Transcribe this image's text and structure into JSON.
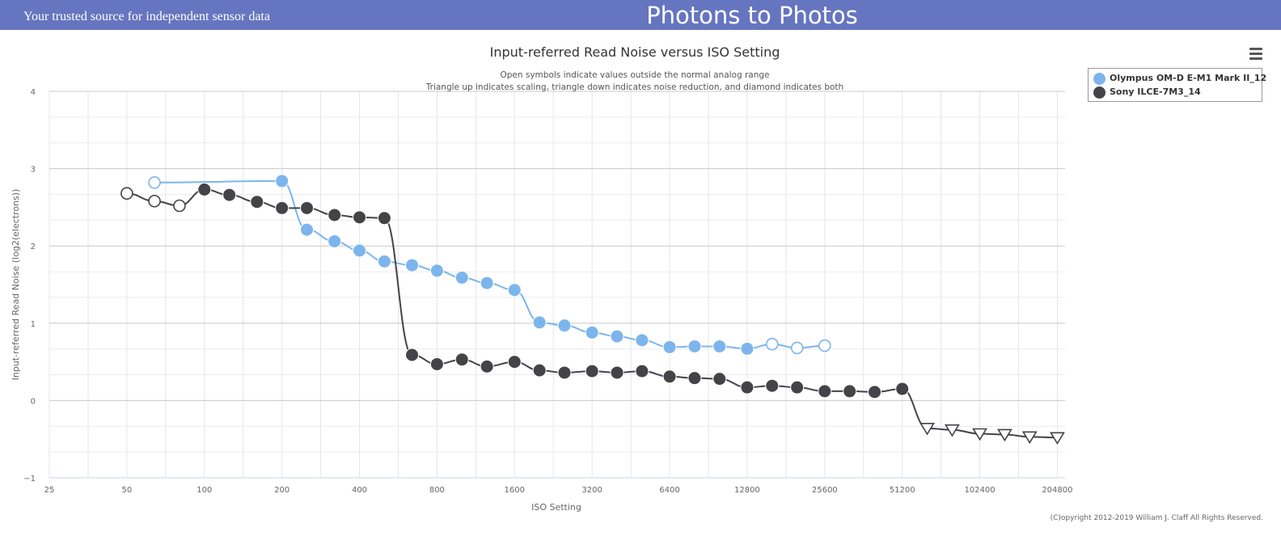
{
  "header": {
    "tagline": "Your trusted source for independent sensor data",
    "site_title": "Photons to Photos",
    "background": "#6675bf"
  },
  "menu": {
    "icon": "hamburger-menu-icon"
  },
  "copyright": "(C)opyright 2012-2019 William J. Claff All Rights Reserved.",
  "chart_data": {
    "type": "line",
    "title": "Input-referred Read Noise versus ISO Setting",
    "subtitle_lines": [
      "Open symbols indicate values outside the normal analog range",
      "Triangle up indicates scaling, triangle down indicates noise reduction, and diamond indicates both"
    ],
    "xlabel": "ISO Setting",
    "ylabel": "Input-referred Read Noise (log2(electrons))",
    "x_scale": "log2",
    "x_ticks": [
      25,
      50,
      100,
      200,
      400,
      800,
      1600,
      3200,
      6400,
      12800,
      25600,
      51200,
      102400,
      204800
    ],
    "xlim": [
      25,
      204800
    ],
    "ylim": [
      -1,
      4
    ],
    "y_ticks": [
      -1,
      0,
      1,
      2,
      3,
      4
    ],
    "grid": true,
    "legend_position": "top-right",
    "series": [
      {
        "name": "Olympus OM-D E-M1 Mark II_12",
        "color": "#7cb5ec",
        "points": [
          {
            "x": 64,
            "y": 2.82,
            "marker": "open-circle"
          },
          {
            "x": 200,
            "y": 2.84,
            "marker": "circle"
          },
          {
            "x": 250,
            "y": 2.21,
            "marker": "circle"
          },
          {
            "x": 320,
            "y": 2.06,
            "marker": "circle"
          },
          {
            "x": 400,
            "y": 1.94,
            "marker": "circle"
          },
          {
            "x": 500,
            "y": 1.8,
            "marker": "circle"
          },
          {
            "x": 640,
            "y": 1.75,
            "marker": "circle"
          },
          {
            "x": 800,
            "y": 1.68,
            "marker": "circle"
          },
          {
            "x": 1000,
            "y": 1.59,
            "marker": "circle"
          },
          {
            "x": 1250,
            "y": 1.52,
            "marker": "circle"
          },
          {
            "x": 1600,
            "y": 1.43,
            "marker": "circle"
          },
          {
            "x": 2000,
            "y": 1.01,
            "marker": "circle"
          },
          {
            "x": 2500,
            "y": 0.97,
            "marker": "circle"
          },
          {
            "x": 3200,
            "y": 0.88,
            "marker": "circle"
          },
          {
            "x": 4000,
            "y": 0.83,
            "marker": "circle"
          },
          {
            "x": 5000,
            "y": 0.78,
            "marker": "circle"
          },
          {
            "x": 6400,
            "y": 0.69,
            "marker": "circle"
          },
          {
            "x": 8000,
            "y": 0.7,
            "marker": "circle"
          },
          {
            "x": 10000,
            "y": 0.7,
            "marker": "circle"
          },
          {
            "x": 12800,
            "y": 0.67,
            "marker": "circle"
          },
          {
            "x": 16000,
            "y": 0.73,
            "marker": "open-circle"
          },
          {
            "x": 20000,
            "y": 0.68,
            "marker": "open-circle"
          },
          {
            "x": 25600,
            "y": 0.71,
            "marker": "open-circle"
          }
        ]
      },
      {
        "name": "Sony ILCE-7M3_14",
        "color": "#434348",
        "points": [
          {
            "x": 50,
            "y": 2.68,
            "marker": "open-circle"
          },
          {
            "x": 64,
            "y": 2.58,
            "marker": "open-circle"
          },
          {
            "x": 80,
            "y": 2.52,
            "marker": "open-circle"
          },
          {
            "x": 100,
            "y": 2.73,
            "marker": "circle"
          },
          {
            "x": 125,
            "y": 2.66,
            "marker": "circle"
          },
          {
            "x": 160,
            "y": 2.57,
            "marker": "circle"
          },
          {
            "x": 200,
            "y": 2.49,
            "marker": "circle"
          },
          {
            "x": 250,
            "y": 2.49,
            "marker": "circle"
          },
          {
            "x": 320,
            "y": 2.4,
            "marker": "circle"
          },
          {
            "x": 400,
            "y": 2.37,
            "marker": "circle"
          },
          {
            "x": 500,
            "y": 2.36,
            "marker": "circle"
          },
          {
            "x": 640,
            "y": 0.59,
            "marker": "circle"
          },
          {
            "x": 800,
            "y": 0.47,
            "marker": "circle"
          },
          {
            "x": 1000,
            "y": 0.53,
            "marker": "circle"
          },
          {
            "x": 1250,
            "y": 0.44,
            "marker": "circle"
          },
          {
            "x": 1600,
            "y": 0.5,
            "marker": "circle"
          },
          {
            "x": 2000,
            "y": 0.39,
            "marker": "circle"
          },
          {
            "x": 2500,
            "y": 0.36,
            "marker": "circle"
          },
          {
            "x": 3200,
            "y": 0.38,
            "marker": "circle"
          },
          {
            "x": 4000,
            "y": 0.36,
            "marker": "circle"
          },
          {
            "x": 5000,
            "y": 0.38,
            "marker": "circle"
          },
          {
            "x": 6400,
            "y": 0.31,
            "marker": "circle"
          },
          {
            "x": 8000,
            "y": 0.29,
            "marker": "circle"
          },
          {
            "x": 10000,
            "y": 0.28,
            "marker": "circle"
          },
          {
            "x": 12800,
            "y": 0.17,
            "marker": "circle"
          },
          {
            "x": 16000,
            "y": 0.19,
            "marker": "circle"
          },
          {
            "x": 20000,
            "y": 0.17,
            "marker": "circle"
          },
          {
            "x": 25600,
            "y": 0.12,
            "marker": "circle"
          },
          {
            "x": 32000,
            "y": 0.12,
            "marker": "circle"
          },
          {
            "x": 40000,
            "y": 0.11,
            "marker": "circle"
          },
          {
            "x": 51200,
            "y": 0.15,
            "marker": "circle"
          },
          {
            "x": 64000,
            "y": -0.36,
            "marker": "triangle-down"
          },
          {
            "x": 80000,
            "y": -0.38,
            "marker": "triangle-down"
          },
          {
            "x": 102400,
            "y": -0.43,
            "marker": "triangle-down"
          },
          {
            "x": 128000,
            "y": -0.44,
            "marker": "triangle-down"
          },
          {
            "x": 160000,
            "y": -0.47,
            "marker": "triangle-down"
          },
          {
            "x": 204800,
            "y": -0.48,
            "marker": "triangle-down"
          }
        ]
      }
    ]
  }
}
